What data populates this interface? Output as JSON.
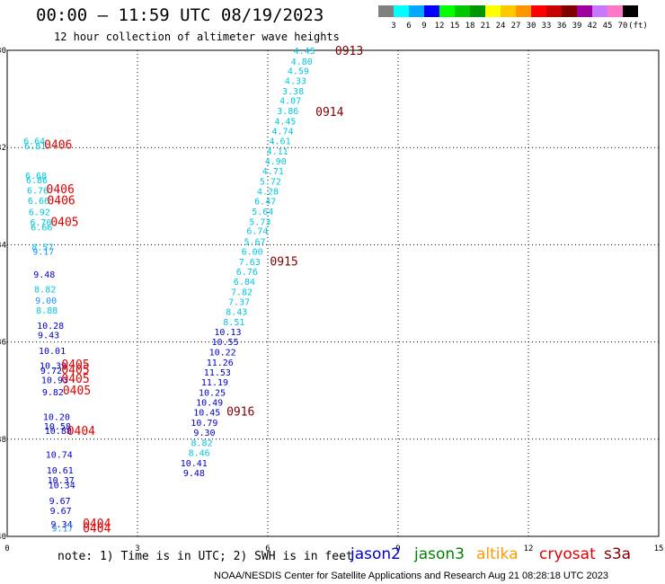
{
  "header": {
    "title": "00:00 – 11:59 UTC 08/19/2023",
    "subtitle": "12 hour collection of altimeter wave heights"
  },
  "legend": {
    "colors": [
      "#808080",
      "#00ffff",
      "#00a8ff",
      "#0000ff",
      "#00ff00",
      "#00c800",
      "#009600",
      "#ffff00",
      "#ffc800",
      "#ff9600",
      "#ff0000",
      "#c80000",
      "#800000",
      "#a000a0",
      "#c878ff",
      "#ff78c8",
      "#000000"
    ],
    "labels": [
      "3",
      "6",
      "9",
      "12",
      "15",
      "18",
      "21",
      "24",
      "27",
      "30",
      "33",
      "36",
      "39",
      "42",
      "45",
      "70",
      "(ft)"
    ]
  },
  "colors": {
    "j2": "#0000cc",
    "j2light": "#1e90ff",
    "cyan": "#00c8e0",
    "red": "#e00000",
    "darkred": "#800000",
    "jason3": "#008000",
    "altika": "#ff9900",
    "s3a": "#800000"
  },
  "chart_data": {
    "type": "scatter",
    "xlim": [
      0,
      15
    ],
    "ylim": [
      -40,
      -30
    ],
    "x_ticks": [
      0,
      3,
      6,
      9,
      12,
      15
    ],
    "y_ticks": [
      -30,
      -32,
      -34,
      -36,
      -38,
      -40
    ],
    "grid": "dotted",
    "track_a": [
      {
        "x": 7.09,
        "y": -30.0,
        "v": "4.45"
      },
      {
        "x": 7.03,
        "y": -30.22,
        "v": "4.80"
      },
      {
        "x": 6.95,
        "y": -30.42,
        "v": "4.59"
      },
      {
        "x": 6.89,
        "y": -30.62,
        "v": "4.33"
      },
      {
        "x": 6.83,
        "y": -30.83,
        "v": "3.38"
      },
      {
        "x": 6.77,
        "y": -31.03,
        "v": "4.07"
      },
      {
        "x": 6.71,
        "y": -31.24,
        "v": "3.86"
      },
      {
        "x": 6.65,
        "y": -31.45,
        "v": "4.45"
      },
      {
        "x": 6.59,
        "y": -31.65,
        "v": "4.74"
      },
      {
        "x": 6.53,
        "y": -31.86,
        "v": "4.61"
      },
      {
        "x": 6.47,
        "y": -32.07,
        "v": "4.11"
      },
      {
        "x": 6.43,
        "y": -32.27,
        "v": "4.90"
      },
      {
        "x": 6.37,
        "y": -32.48,
        "v": "4.71"
      },
      {
        "x": 6.31,
        "y": -32.69,
        "v": "5.72"
      },
      {
        "x": 6.25,
        "y": -32.89,
        "v": "4.28"
      },
      {
        "x": 6.19,
        "y": -33.1,
        "v": "6.47"
      },
      {
        "x": 6.13,
        "y": -33.31,
        "v": "5.64"
      },
      {
        "x": 6.07,
        "y": -33.52,
        "v": "5.73"
      },
      {
        "x": 6.01,
        "y": -33.71,
        "v": "6.74"
      },
      {
        "x": 5.95,
        "y": -33.93,
        "v": "5.67"
      },
      {
        "x": 5.89,
        "y": -34.13,
        "v": "6.00"
      },
      {
        "x": 5.83,
        "y": -34.34,
        "v": "7.63"
      },
      {
        "x": 5.77,
        "y": -34.55,
        "v": "6.76"
      },
      {
        "x": 5.71,
        "y": -34.75,
        "v": "6.84"
      },
      {
        "x": 5.65,
        "y": -34.96,
        "v": "7.82"
      },
      {
        "x": 5.59,
        "y": -35.17,
        "v": "7.37"
      },
      {
        "x": 5.53,
        "y": -35.37,
        "v": "8.43"
      },
      {
        "x": 5.47,
        "y": -35.58,
        "v": "8.51"
      },
      {
        "x": 5.39,
        "y": -35.79,
        "v": "10.13"
      },
      {
        "x": 5.33,
        "y": -35.99,
        "v": "10.55"
      },
      {
        "x": 5.27,
        "y": -36.2,
        "v": "10.22"
      },
      {
        "x": 5.21,
        "y": -36.41,
        "v": "11.26"
      },
      {
        "x": 5.15,
        "y": -36.62,
        "v": "11.53"
      },
      {
        "x": 5.09,
        "y": -36.82,
        "v": "11.19"
      },
      {
        "x": 5.03,
        "y": -37.03,
        "v": "10.25"
      },
      {
        "x": 4.97,
        "y": -37.24,
        "v": "10.49"
      },
      {
        "x": 4.91,
        "y": -37.44,
        "v": "10.45"
      },
      {
        "x": 4.85,
        "y": -37.65,
        "v": "10.79"
      },
      {
        "x": 4.79,
        "y": -37.86,
        "v": "9.30"
      },
      {
        "x": 4.73,
        "y": -38.07,
        "v": "8.82"
      },
      {
        "x": 4.67,
        "y": -38.27,
        "v": "8.46"
      },
      {
        "x": 4.61,
        "y": -38.48,
        "v": "10.41"
      },
      {
        "x": 4.55,
        "y": -38.69,
        "v": "9.48"
      }
    ],
    "track_b": [
      {
        "x": 0.25,
        "y": -31.86,
        "v": "6.64"
      },
      {
        "x": 0.27,
        "y": -31.96,
        "v": "6.81"
      },
      {
        "x": 0.29,
        "y": -32.57,
        "v": "6.68"
      },
      {
        "x": 0.31,
        "y": -32.66,
        "v": "6.86"
      },
      {
        "x": 0.33,
        "y": -32.87,
        "v": "6.76"
      },
      {
        "x": 0.35,
        "y": -33.09,
        "v": "6.66"
      },
      {
        "x": 0.37,
        "y": -33.32,
        "v": "6.92"
      },
      {
        "x": 0.4,
        "y": -33.53,
        "v": "6.70"
      },
      {
        "x": 0.42,
        "y": -33.63,
        "v": "6.66"
      },
      {
        "x": 0.44,
        "y": -34.04,
        "v": "8.57"
      },
      {
        "x": 0.46,
        "y": -34.13,
        "v": "9.17"
      },
      {
        "x": 0.48,
        "y": -34.6,
        "v": "9.48"
      },
      {
        "x": 0.5,
        "y": -34.91,
        "v": "8.82"
      },
      {
        "x": 0.52,
        "y": -35.14,
        "v": "9.00"
      },
      {
        "x": 0.54,
        "y": -35.34,
        "v": "8.88"
      },
      {
        "x": 0.56,
        "y": -35.66,
        "v": "10.28"
      },
      {
        "x": 0.58,
        "y": -35.85,
        "v": "9.43"
      },
      {
        "x": 0.6,
        "y": -36.17,
        "v": "10.01"
      },
      {
        "x": 0.62,
        "y": -36.48,
        "v": "10.39"
      },
      {
        "x": 0.64,
        "y": -36.58,
        "v": "9.72"
      },
      {
        "x": 0.66,
        "y": -36.77,
        "v": "10.93"
      },
      {
        "x": 0.68,
        "y": -37.02,
        "v": "9.82"
      },
      {
        "x": 0.7,
        "y": -37.53,
        "v": "10.20"
      },
      {
        "x": 0.72,
        "y": -37.73,
        "v": "10.58"
      },
      {
        "x": 0.74,
        "y": -37.82,
        "v": "10.88"
      },
      {
        "x": 0.76,
        "y": -38.31,
        "v": "10.74"
      },
      {
        "x": 0.78,
        "y": -38.63,
        "v": "10.61"
      },
      {
        "x": 0.8,
        "y": -38.84,
        "v": "10.37"
      },
      {
        "x": 0.82,
        "y": -38.94,
        "v": "10.34"
      },
      {
        "x": 0.84,
        "y": -39.26,
        "v": "9.67"
      },
      {
        "x": 0.86,
        "y": -39.46,
        "v": "9.67"
      },
      {
        "x": 0.88,
        "y": -39.74,
        "v": "9.34"
      },
      {
        "x": 0.9,
        "y": -39.82,
        "v": "9.17"
      }
    ],
    "time_labels": [
      {
        "x": 7.55,
        "y": -30.0,
        "t": "0913",
        "c": "darkred"
      },
      {
        "x": 7.1,
        "y": -31.26,
        "t": "0914",
        "c": "darkred"
      },
      {
        "x": 6.05,
        "y": -34.33,
        "t": "0915",
        "c": "darkred"
      },
      {
        "x": 5.05,
        "y": -37.42,
        "t": "0916",
        "c": "darkred"
      },
      {
        "x": 0.85,
        "y": -31.93,
        "t": "0406",
        "c": "red"
      },
      {
        "x": 0.9,
        "y": -32.85,
        "t": "0406",
        "c": "red"
      },
      {
        "x": 0.92,
        "y": -33.08,
        "t": "0406",
        "c": "red"
      },
      {
        "x": 1.0,
        "y": -33.52,
        "t": "0405",
        "c": "red"
      },
      {
        "x": 1.25,
        "y": -36.45,
        "t": "0405",
        "c": "red"
      },
      {
        "x": 1.25,
        "y": -36.56,
        "t": "0405",
        "c": "red"
      },
      {
        "x": 1.25,
        "y": -36.75,
        "t": "0405",
        "c": "red"
      },
      {
        "x": 1.28,
        "y": -36.99,
        "t": "0405",
        "c": "red"
      },
      {
        "x": 1.38,
        "y": -37.82,
        "t": "0404",
        "c": "red"
      },
      {
        "x": 1.74,
        "y": -39.72,
        "t": "0404",
        "c": "red"
      },
      {
        "x": 1.74,
        "y": -39.82,
        "t": "0404",
        "c": "red"
      }
    ]
  },
  "footer": {
    "note": "note:  1) Time is in UTC; 2) SWH is in feet",
    "sat_jason2": "jason2",
    "sat_jason3": "jason3",
    "sat_altika": "altika",
    "sat_cryosat": "cryosat",
    "sat_s3a": "s3a",
    "credit": "NOAA/NESDIS Center for Satellite Applications and Research    Aug 21 08:28:18 UTC 2023"
  }
}
